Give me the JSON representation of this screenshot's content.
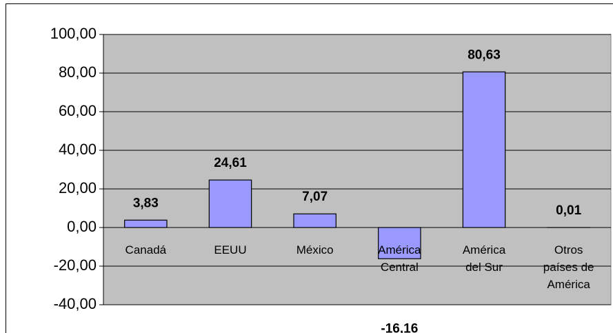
{
  "chart_data": {
    "type": "bar",
    "categories": [
      "Canadá",
      "EEUU",
      "México",
      "América\nCentral",
      "América\ndel Sur",
      "Otros\npaíses de\nAmérica"
    ],
    "values": [
      3.83,
      24.61,
      7.07,
      -16.16,
      80.63,
      0.01
    ],
    "value_labels": [
      "3,83",
      "24,61",
      "7,07",
      "-16,16",
      "80,63",
      "0,01"
    ],
    "color": "#9999ff",
    "ylim": [
      -40,
      100
    ],
    "yticks": [
      {
        "value": -40,
        "label": "-40,00"
      },
      {
        "value": -20,
        "label": "-20,00"
      },
      {
        "value": 0,
        "label": "0,00"
      },
      {
        "value": 20,
        "label": "20,00"
      },
      {
        "value": 40,
        "label": "40,00"
      },
      {
        "value": 60,
        "label": "60,00"
      },
      {
        "value": 80,
        "label": "80,00"
      },
      {
        "value": 100,
        "label": "100,00"
      }
    ],
    "grid": true
  }
}
